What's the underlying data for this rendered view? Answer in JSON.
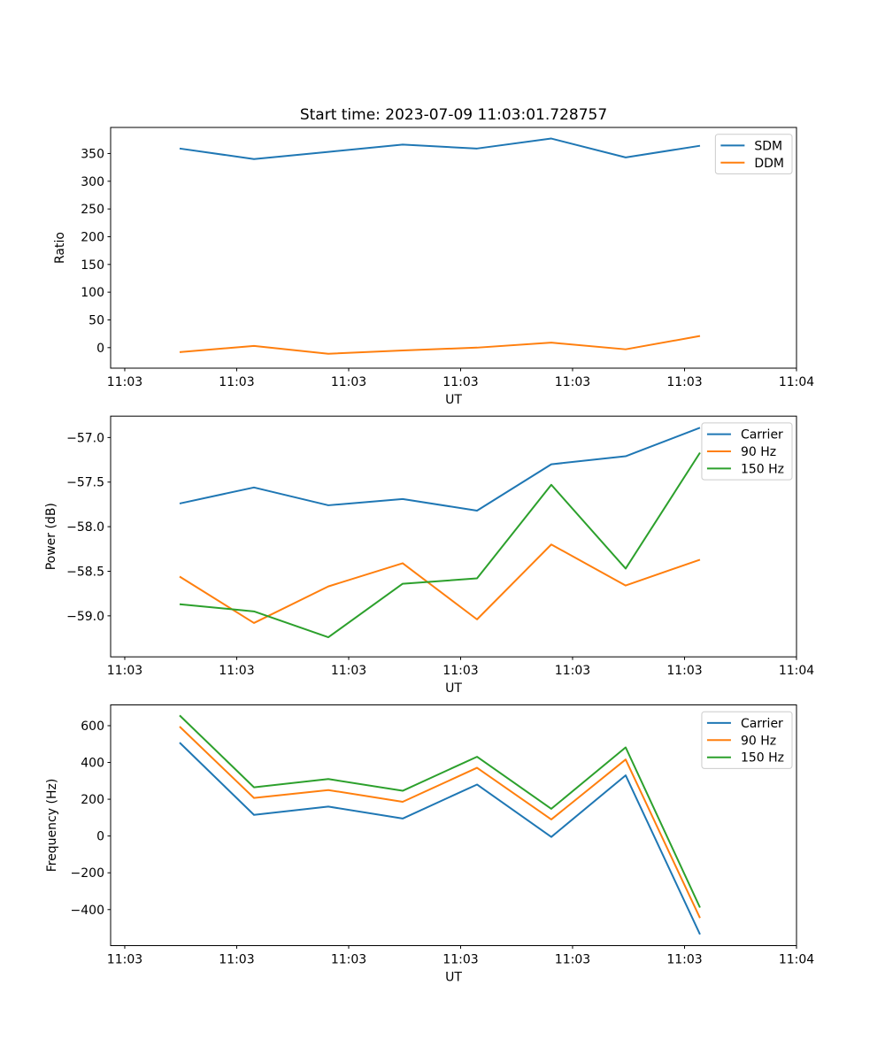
{
  "figure": {
    "title": "Start time: 2023-07-09 11:03:01.728757",
    "background": "#ffffff",
    "text_color": "#000000",
    "spine_color": "#000000",
    "legend_border_color": "#cccccc"
  },
  "chart_data": [
    {
      "id": "ratio",
      "type": "line",
      "title": "Start time: 2023-07-09 11:03:01.728757",
      "xlabel": "UT",
      "ylabel": "Ratio",
      "grid": false,
      "legend_position": "upper right",
      "ylim": [
        -37,
        397
      ],
      "yticks": {
        "values": [
          0,
          50,
          100,
          150,
          200,
          250,
          300,
          350
        ],
        "labels": [
          "0",
          "50",
          "100",
          "150",
          "200",
          "250",
          "300",
          "350"
        ]
      },
      "xticks": {
        "fractions": [
          0.0206,
          0.1838,
          0.3471,
          0.5103,
          0.6735,
          0.8368,
          1.0
        ],
        "labels": [
          "11:03",
          "11:03",
          "11:03",
          "11:03",
          "11:03",
          "11:03",
          "11:04"
        ]
      },
      "point_fractions": [
        0.1006,
        0.209,
        0.3174,
        0.4258,
        0.5342,
        0.6425,
        0.7509,
        0.8593
      ],
      "series": [
        {
          "name": "SDM",
          "color": "#1f77b4",
          "values": [
            359,
            340,
            353,
            366,
            359,
            377,
            343,
            364
          ]
        },
        {
          "name": "DDM",
          "color": "#ff7f0e",
          "values": [
            -8,
            3,
            -11,
            -5,
            0,
            9,
            -3,
            21
          ]
        }
      ]
    },
    {
      "id": "power",
      "type": "line",
      "title": "",
      "xlabel": "UT",
      "ylabel": "Power (dB)",
      "grid": false,
      "legend_position": "upper right",
      "ylim": [
        -59.46,
        -56.76
      ],
      "yticks": {
        "values": [
          -57.0,
          -57.5,
          -58.0,
          -58.5,
          -59.0
        ],
        "labels": [
          "−57.0",
          "−57.5",
          "−58.0",
          "−58.5",
          "−59.0"
        ]
      },
      "xticks": {
        "fractions": [
          0.0206,
          0.1838,
          0.3471,
          0.5103,
          0.6735,
          0.8368,
          1.0
        ],
        "labels": [
          "11:03",
          "11:03",
          "11:03",
          "11:03",
          "11:03",
          "11:03",
          "11:04"
        ]
      },
      "point_fractions": [
        0.1006,
        0.209,
        0.3174,
        0.4258,
        0.5342,
        0.6425,
        0.7509,
        0.8593
      ],
      "series": [
        {
          "name": "Carrier",
          "color": "#1f77b4",
          "values": [
            -57.74,
            -57.56,
            -57.76,
            -57.69,
            -57.82,
            -57.3,
            -57.21,
            -56.89
          ]
        },
        {
          "name": "90 Hz",
          "color": "#ff7f0e",
          "values": [
            -58.56,
            -59.08,
            -58.67,
            -58.41,
            -59.04,
            -58.2,
            -58.66,
            -58.37
          ]
        },
        {
          "name": "150 Hz",
          "color": "#2ca02c",
          "values": [
            -58.87,
            -58.95,
            -59.24,
            -58.64,
            -58.58,
            -57.53,
            -58.47,
            -57.17
          ]
        }
      ]
    },
    {
      "id": "frequency",
      "type": "line",
      "title": "",
      "xlabel": "UT",
      "ylabel": "Frequency (Hz)",
      "grid": false,
      "legend_position": "upper right",
      "ylim": [
        -596,
        713
      ],
      "yticks": {
        "values": [
          600,
          400,
          200,
          0,
          -200,
          -400
        ],
        "labels": [
          "600",
          "400",
          "200",
          "0",
          "−200",
          "−400"
        ]
      },
      "xticks": {
        "fractions": [
          0.0206,
          0.1838,
          0.3471,
          0.5103,
          0.6735,
          0.8368,
          1.0
        ],
        "labels": [
          "11:03",
          "11:03",
          "11:03",
          "11:03",
          "11:03",
          "11:03",
          "11:04"
        ]
      },
      "point_fractions": [
        0.1006,
        0.209,
        0.3174,
        0.4258,
        0.5342,
        0.6425,
        0.7509,
        0.8593
      ],
      "series": [
        {
          "name": "Carrier",
          "color": "#1f77b4",
          "values": [
            508,
            115,
            160,
            95,
            280,
            -5,
            330,
            -535
          ]
        },
        {
          "name": "90 Hz",
          "color": "#ff7f0e",
          "values": [
            595,
            207,
            250,
            186,
            371,
            90,
            416,
            -446
          ]
        },
        {
          "name": "150 Hz",
          "color": "#2ca02c",
          "values": [
            656,
            265,
            310,
            246,
            431,
            148,
            482,
            -389
          ]
        }
      ]
    }
  ]
}
